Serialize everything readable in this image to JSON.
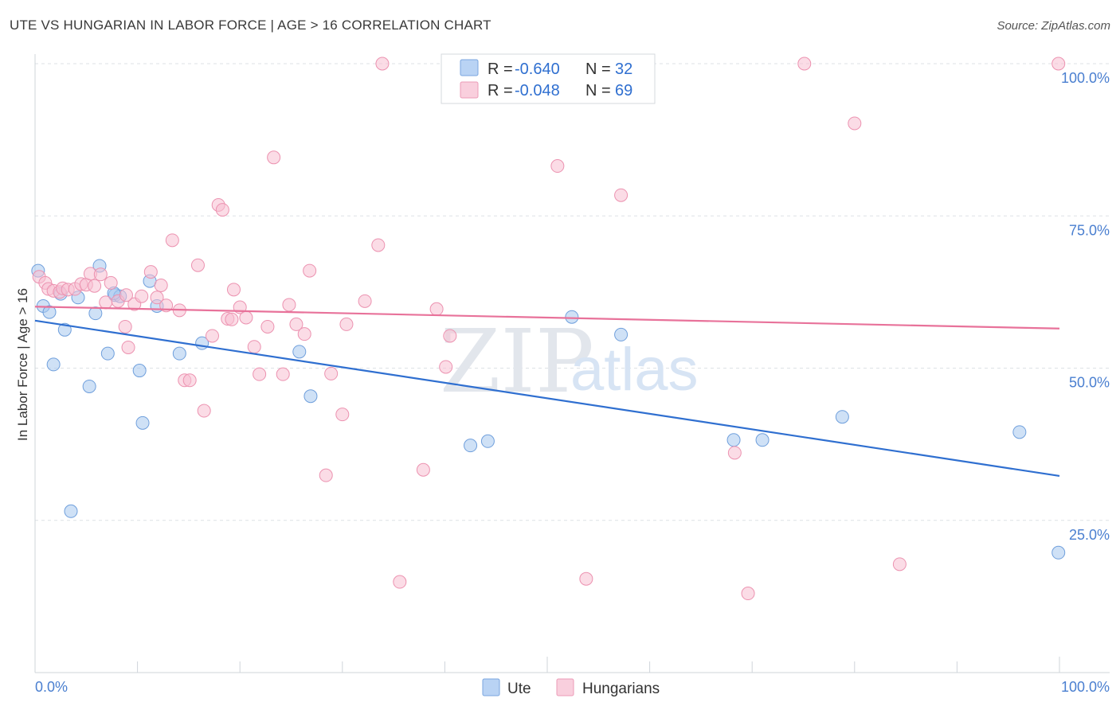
{
  "header": {
    "title": "UTE VS HUNGARIAN IN LABOR FORCE | AGE > 16 CORRELATION CHART",
    "source": "Source: ZipAtlas.com"
  },
  "chart_data": {
    "type": "scatter",
    "title": "UTE VS HUNGARIAN IN LABOR FORCE | AGE > 16 CORRELATION CHART",
    "ylabel": "In Labor Force | Age > 16",
    "xlim": [
      0,
      100
    ],
    "ylim": [
      0,
      100
    ],
    "x_tick_labels": {
      "left": "0.0%",
      "right": "100.0%"
    },
    "y_ticks": [
      {
        "value": 100,
        "label": "100.0%"
      },
      {
        "value": 75,
        "label": "75.0%"
      },
      {
        "value": 50,
        "label": "50.0%"
      },
      {
        "value": 25,
        "label": "25.0%"
      }
    ],
    "watermark": {
      "zip": "ZIP",
      "atlas": "atlas"
    },
    "legend": [
      {
        "name": "Ute",
        "r_label": "R =",
        "r_value": "-0.640",
        "n_label": "N =",
        "n_value": "32"
      },
      {
        "name": "Hungarians",
        "r_label": "R =",
        "r_value": "-0.048",
        "n_label": "N =",
        "n_value": "69"
      }
    ],
    "series": [
      {
        "name": "Ute",
        "color": "#a8c8ef",
        "stroke": "#6f9fdc",
        "trend": {
          "x": [
            0,
            100
          ],
          "y": [
            57.8,
            32.3
          ],
          "color": "#2f6fd0"
        },
        "points": [
          [
            0.3,
            66.0
          ],
          [
            0.8,
            60.2
          ],
          [
            1.4,
            59.2
          ],
          [
            1.8,
            50.6
          ],
          [
            2.5,
            62.2
          ],
          [
            2.9,
            56.3
          ],
          [
            3.5,
            26.5
          ],
          [
            4.2,
            61.6
          ],
          [
            5.3,
            47.0
          ],
          [
            5.9,
            59.0
          ],
          [
            6.3,
            66.8
          ],
          [
            7.1,
            52.4
          ],
          [
            7.8,
            62.0
          ],
          [
            8.3,
            61.8
          ],
          [
            10.2,
            49.6
          ],
          [
            10.5,
            41.0
          ],
          [
            11.2,
            64.3
          ],
          [
            11.9,
            60.2
          ],
          [
            14.1,
            52.4
          ],
          [
            16.3,
            54.1
          ],
          [
            25.8,
            52.7
          ],
          [
            26.9,
            45.4
          ],
          [
            42.5,
            37.3
          ],
          [
            44.2,
            38.0
          ],
          [
            52.4,
            58.4
          ],
          [
            57.2,
            55.5
          ],
          [
            68.2,
            38.2
          ],
          [
            71.0,
            38.2
          ],
          [
            78.8,
            42.0
          ],
          [
            96.1,
            39.5
          ],
          [
            99.9,
            19.7
          ],
          [
            7.7,
            62.3
          ]
        ]
      },
      {
        "name": "Hungarians",
        "color": "#f7c0d2",
        "stroke": "#ec92b0",
        "trend": {
          "x": [
            0,
            100
          ],
          "y": [
            60.1,
            56.5
          ],
          "color": "#e8729a"
        },
        "points": [
          [
            0.4,
            65.0
          ],
          [
            1.0,
            64.0
          ],
          [
            1.3,
            63.0
          ],
          [
            1.8,
            62.7
          ],
          [
            2.4,
            62.5
          ],
          [
            2.7,
            63.1
          ],
          [
            3.2,
            62.9
          ],
          [
            3.9,
            63.0
          ],
          [
            4.5,
            63.8
          ],
          [
            5.0,
            63.7
          ],
          [
            5.4,
            65.5
          ],
          [
            5.8,
            63.5
          ],
          [
            6.4,
            65.4
          ],
          [
            6.9,
            60.8
          ],
          [
            7.4,
            64.0
          ],
          [
            8.1,
            61.0
          ],
          [
            8.8,
            56.8
          ],
          [
            9.1,
            53.4
          ],
          [
            9.7,
            60.5
          ],
          [
            10.4,
            61.8
          ],
          [
            11.3,
            65.8
          ],
          [
            11.9,
            61.6
          ],
          [
            12.3,
            63.6
          ],
          [
            12.8,
            60.3
          ],
          [
            13.4,
            71.0
          ],
          [
            14.1,
            59.5
          ],
          [
            14.6,
            48.0
          ],
          [
            15.1,
            48.0
          ],
          [
            15.9,
            66.9
          ],
          [
            16.5,
            43.0
          ],
          [
            17.3,
            55.3
          ],
          [
            17.9,
            76.8
          ],
          [
            18.3,
            76.0
          ],
          [
            18.8,
            58.1
          ],
          [
            19.4,
            62.9
          ],
          [
            20.0,
            60.0
          ],
          [
            20.6,
            58.3
          ],
          [
            21.4,
            53.5
          ],
          [
            21.9,
            49.0
          ],
          [
            22.7,
            56.8
          ],
          [
            23.3,
            84.6
          ],
          [
            24.2,
            49.0
          ],
          [
            24.8,
            60.4
          ],
          [
            25.5,
            57.2
          ],
          [
            26.3,
            55.6
          ],
          [
            26.8,
            66.0
          ],
          [
            28.4,
            32.4
          ],
          [
            28.9,
            49.1
          ],
          [
            30.0,
            42.4
          ],
          [
            30.4,
            57.2
          ],
          [
            32.2,
            61.0
          ],
          [
            33.5,
            70.2
          ],
          [
            33.9,
            100.0
          ],
          [
            35.6,
            14.9
          ],
          [
            37.9,
            33.3
          ],
          [
            39.2,
            59.7
          ],
          [
            40.1,
            50.2
          ],
          [
            40.5,
            55.3
          ],
          [
            51.0,
            83.2
          ],
          [
            53.8,
            15.4
          ],
          [
            57.2,
            78.4
          ],
          [
            68.3,
            36.1
          ],
          [
            69.6,
            13.0
          ],
          [
            75.1,
            100.0
          ],
          [
            80.0,
            90.2
          ],
          [
            84.4,
            17.8
          ],
          [
            99.9,
            100.0
          ],
          [
            8.9,
            62.0
          ],
          [
            19.2,
            58.0
          ]
        ]
      }
    ]
  },
  "colors": {
    "axis": "#cfd4da",
    "grid": "#dde1e6",
    "tick_label": "#4a7fd0"
  }
}
